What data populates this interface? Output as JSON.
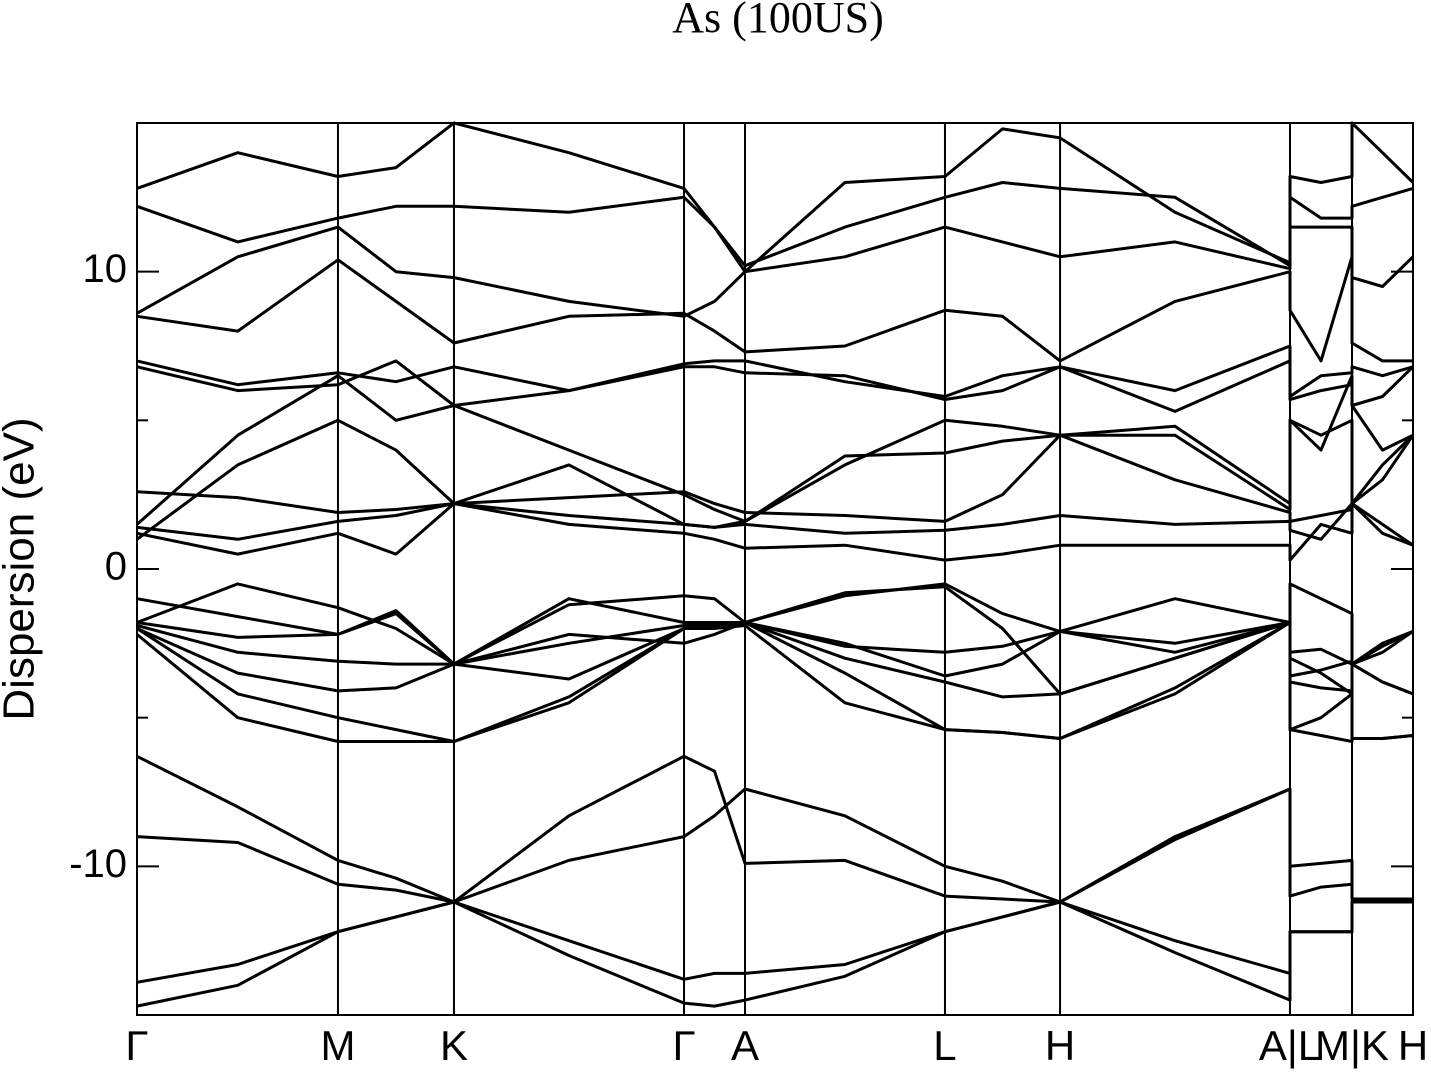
{
  "chart_data": {
    "type": "line",
    "title": "As (100US)",
    "ylabel": "Dispersion (eV)",
    "xlim": [
      0,
      1
    ],
    "ylim": [
      -15,
      15
    ],
    "yticks": [
      -10,
      0,
      10
    ],
    "yminorticks": [
      -5,
      5
    ],
    "xticks": [
      {
        "value": 0,
        "label": "Γ"
      },
      {
        "value": 0.1575,
        "label": "M"
      },
      {
        "value": 0.2484,
        "label": "K"
      },
      {
        "value": 0.4287,
        "label": "Γ"
      },
      {
        "value": 0.4765,
        "label": "A"
      },
      {
        "value": 0.6332,
        "label": "L"
      },
      {
        "value": 0.7234,
        "label": "H"
      },
      {
        "value": 0.9036,
        "label": "A|L"
      },
      {
        "value": 0.9522,
        "label": "M|K"
      },
      {
        "value": 1,
        "label": "H"
      }
    ],
    "grid": true,
    "x": [
      0,
      0.079,
      0.1575,
      0.203,
      0.2484,
      0.3385,
      0.4287,
      0.4526,
      0.4765,
      0.5548,
      0.6332,
      0.6783,
      0.7234,
      0.8135,
      0.9036,
      0.9036,
      0.9279,
      0.9522,
      0.9522,
      0.9761,
      1
    ],
    "series": [
      {
        "color": "#000000",
        "values": [
          -14.7,
          -14.0,
          -12.2,
          -11.7,
          -11.2,
          -13.0,
          -14.6,
          -14.7,
          -14.5,
          -13.7,
          -12.2,
          -11.7,
          -11.2,
          -12.9,
          -14.5,
          -12.2,
          -12.2,
          -12.2,
          -11.2,
          -11.2,
          -11.2
        ]
      },
      {
        "color": "#000000",
        "values": [
          -13.9,
          -13.3,
          -12.2,
          -11.7,
          -11.2,
          -12.5,
          -13.8,
          -13.6,
          -13.6,
          -13.3,
          -12.2,
          -11.7,
          -11.2,
          -12.5,
          -13.6,
          -12.2,
          -12.2,
          -12.2,
          -11.2,
          -11.2,
          -11.2
        ]
      },
      {
        "color": "#000000",
        "values": [
          -9.0,
          -9.2,
          -10.6,
          -10.8,
          -11.2,
          -9.8,
          -9.0,
          -8.3,
          -7.4,
          -8.3,
          -10.0,
          -10.5,
          -11.2,
          -9.0,
          -7.4,
          -11.0,
          -10.7,
          -10.6,
          -11.1,
          -11.1,
          -11.1
        ]
      },
      {
        "color": "#000000",
        "values": [
          -6.3,
          -8.0,
          -9.8,
          -10.4,
          -11.2,
          -8.3,
          -6.3,
          -6.8,
          -9.9,
          -9.8,
          -11.0,
          -11.1,
          -11.2,
          -9.1,
          -7.4,
          -10.0,
          -9.9,
          -9.8,
          -11.1,
          -11.1,
          -11.1
        ]
      },
      {
        "color": "#000000",
        "values": [
          -2.2,
          -5.0,
          -5.8,
          -5.8,
          -5.8,
          -4.5,
          -2.0,
          -2.0,
          -1.9,
          -4.5,
          -5.4,
          -5.5,
          -5.7,
          -4.0,
          -1.8,
          -5.4,
          -5.6,
          -5.8,
          -5.7,
          -5.7,
          -5.6
        ]
      },
      {
        "color": "#000000",
        "values": [
          -2.0,
          -4.2,
          -5.0,
          -5.4,
          -5.8,
          -4.3,
          -2.0,
          -1.9,
          -1.8,
          -3.5,
          -5.4,
          -5.5,
          -5.7,
          -4.2,
          -1.8,
          -5.4,
          -5.0,
          -4.2,
          -5.7,
          -5.7,
          -5.6
        ]
      },
      {
        "color": "#000000",
        "values": [
          -2.0,
          -3.5,
          -4.1,
          -4.0,
          -3.2,
          -3.7,
          -2.0,
          -1.9,
          -1.8,
          -3.0,
          -3.8,
          -4.3,
          -4.2,
          -3.0,
          -1.8,
          -3.8,
          -4.0,
          -4.1,
          -3.2,
          -3.8,
          -4.2
        ]
      },
      {
        "color": "#000000",
        "values": [
          -1.9,
          -2.8,
          -3.1,
          -3.2,
          -3.2,
          -2.5,
          -1.9,
          -1.9,
          -1.8,
          -2.5,
          -3.6,
          -3.2,
          -2.1,
          -2.8,
          -1.8,
          -3.6,
          -3.4,
          -3.1,
          -3.2,
          -2.8,
          -2.1
        ]
      },
      {
        "color": "#000000",
        "values": [
          -1.8,
          -2.3,
          -2.2,
          -1.5,
          -3.2,
          -2.2,
          -2.5,
          -2.2,
          -1.8,
          -2.6,
          -2.8,
          -2.6,
          -2.1,
          -2.5,
          -1.8,
          -2.8,
          -2.7,
          -3.2,
          -3.2,
          -2.6,
          -2.1
        ]
      },
      {
        "color": "#000000",
        "values": [
          -1.0,
          -1.6,
          -2.2,
          -1.4,
          -3.2,
          -1.2,
          -0.9,
          -1.0,
          -1.8,
          -0.9,
          -0.5,
          -1.5,
          -2.1,
          -1.0,
          -1.8,
          -0.5,
          -1.0,
          -1.5,
          -3.2,
          -2.5,
          -2.1
        ]
      },
      {
        "color": "#000000",
        "values": [
          -1.8,
          -0.5,
          -1.3,
          -2.0,
          -3.2,
          -1.0,
          -1.8,
          -1.8,
          -1.8,
          -0.8,
          -0.6,
          -2.0,
          -4.2,
          -3.0,
          -1.8,
          -3.0,
          -3.5,
          -4.2,
          -3.2,
          -3.8,
          -4.2
        ]
      },
      {
        "color": "#000000",
        "values": [
          1.2,
          0.5,
          1.2,
          0.5,
          2.2,
          1.5,
          1.2,
          1.0,
          0.7,
          0.8,
          0.3,
          0.5,
          0.8,
          0.8,
          0.8,
          0.3,
          1.5,
          1.2,
          2.2,
          1.2,
          0.8
        ]
      },
      {
        "color": "#000000",
        "values": [
          1.4,
          1.0,
          1.6,
          1.8,
          2.2,
          1.8,
          1.5,
          1.4,
          1.5,
          1.2,
          1.3,
          1.5,
          1.8,
          1.5,
          1.6,
          1.3,
          1.0,
          2.2,
          2.2,
          1.5,
          0.8
        ]
      },
      {
        "color": "#000000",
        "values": [
          2.6,
          2.4,
          1.9,
          2.0,
          2.2,
          2.4,
          2.6,
          2.2,
          1.9,
          1.8,
          1.6,
          2.5,
          4.5,
          3.0,
          1.9,
          1.6,
          1.8,
          2.0,
          2.2,
          3.5,
          4.5
        ]
      },
      {
        "color": "#000000",
        "values": [
          1.0,
          3.5,
          5.0,
          4.0,
          2.2,
          3.5,
          1.5,
          1.4,
          1.6,
          3.8,
          3.9,
          4.3,
          4.5,
          4.5,
          2.0,
          5.0,
          4.5,
          5.0,
          2.2,
          3.0,
          4.5
        ]
      },
      {
        "color": "#000000",
        "values": [
          1.5,
          4.5,
          6.5,
          5.0,
          5.5,
          4.0,
          2.5,
          2.0,
          1.6,
          3.5,
          5.0,
          4.8,
          4.5,
          4.8,
          2.2,
          5.0,
          4.0,
          6.5,
          5.5,
          4.0,
          4.5
        ]
      },
      {
        "color": "#000000",
        "values": [
          6.8,
          6.0,
          6.2,
          7.0,
          5.5,
          6.0,
          6.8,
          6.8,
          6.6,
          6.5,
          5.7,
          6.0,
          6.8,
          5.3,
          7.0,
          5.7,
          6.0,
          6.2,
          5.5,
          5.8,
          6.8
        ]
      },
      {
        "color": "#000000",
        "values": [
          7.0,
          6.2,
          6.6,
          6.3,
          6.8,
          6.0,
          6.9,
          7.0,
          7.0,
          6.3,
          5.8,
          6.5,
          6.8,
          6.0,
          7.5,
          5.8,
          6.5,
          6.6,
          6.8,
          6.5,
          6.8
        ]
      },
      {
        "color": "#000000",
        "values": [
          8.5,
          8.0,
          10.4,
          9.0,
          7.6,
          8.5,
          8.6,
          8.0,
          7.3,
          7.5,
          8.7,
          8.5,
          7.0,
          9.0,
          10.0,
          8.7,
          7.0,
          10.5,
          7.6,
          7.0,
          7.0
        ]
      },
      {
        "color": "#000000",
        "values": [
          8.6,
          10.5,
          11.5,
          10.0,
          9.8,
          9.0,
          8.5,
          9.0,
          10.0,
          10.5,
          11.5,
          11.0,
          10.5,
          11.0,
          10.1,
          11.5,
          11.5,
          11.5,
          9.8,
          9.5,
          10.5
        ]
      },
      {
        "color": "#000000",
        "values": [
          12.2,
          11.0,
          11.8,
          12.2,
          12.2,
          12.0,
          12.5,
          11.5,
          10.2,
          11.5,
          12.5,
          13.0,
          12.8,
          12.5,
          10.2,
          12.5,
          11.8,
          11.8,
          12.2,
          12.5,
          12.8
        ]
      },
      {
        "color": "#000000",
        "values": [
          12.8,
          14.0,
          13.2,
          13.5,
          15.0,
          14.0,
          12.8,
          11.5,
          10.0,
          13.0,
          13.2,
          14.8,
          14.5,
          12.0,
          10.3,
          13.2,
          13.0,
          13.2,
          15.0,
          14.0,
          13.0
        ]
      }
    ]
  }
}
